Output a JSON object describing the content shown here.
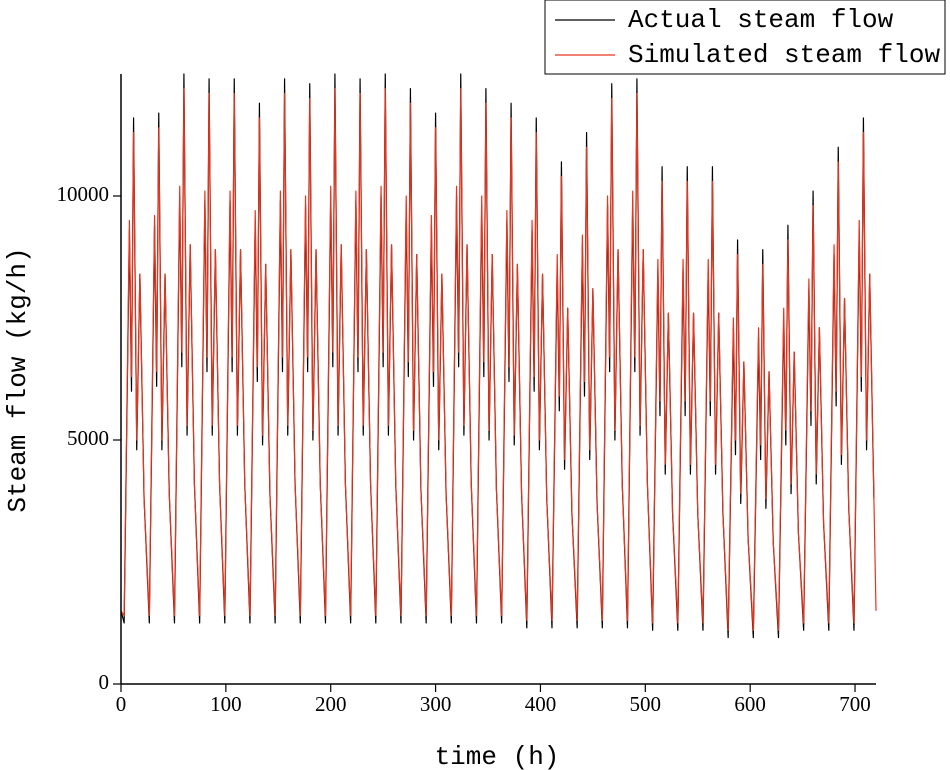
{
  "chart_data": {
    "type": "line",
    "x_label": "time (h)",
    "y_label": "Steam flow (kg/h)",
    "xlim": [
      0,
      720
    ],
    "xticks": [
      0,
      100,
      200,
      300,
      400,
      500,
      600,
      700
    ],
    "ylim": [
      0,
      12500
    ],
    "yticks": [
      0,
      5000,
      10000
    ],
    "x": [
      0,
      3,
      8,
      10,
      12,
      15,
      18,
      22,
      27,
      32,
      34,
      36,
      39,
      42,
      46,
      51,
      56,
      58,
      60,
      63,
      66,
      70,
      75,
      80,
      82,
      84,
      87,
      90,
      94,
      99,
      104,
      106,
      108,
      111,
      114,
      118,
      123,
      128,
      130,
      132,
      135,
      138,
      142,
      147,
      152,
      154,
      156,
      159,
      162,
      166,
      171,
      176,
      178,
      180,
      183,
      186,
      190,
      195,
      200,
      202,
      204,
      207,
      210,
      214,
      219,
      224,
      226,
      228,
      231,
      234,
      238,
      243,
      248,
      250,
      252,
      255,
      258,
      262,
      267,
      272,
      274,
      276,
      279,
      282,
      286,
      291,
      296,
      298,
      300,
      303,
      306,
      310,
      315,
      320,
      322,
      324,
      327,
      330,
      334,
      339,
      344,
      346,
      348,
      351,
      354,
      358,
      363,
      368,
      370,
      372,
      375,
      378,
      382,
      387,
      392,
      394,
      396,
      399,
      402,
      406,
      411,
      416,
      418,
      420,
      423,
      426,
      430,
      435,
      440,
      442,
      444,
      447,
      450,
      454,
      459,
      464,
      466,
      468,
      471,
      474,
      478,
      483,
      488,
      490,
      492,
      495,
      498,
      502,
      507,
      512,
      514,
      516,
      519,
      522,
      526,
      531,
      536,
      538,
      540,
      543,
      546,
      550,
      555,
      560,
      562,
      564,
      567,
      570,
      574,
      579,
      584,
      586,
      588,
      591,
      594,
      598,
      603,
      608,
      610,
      612,
      615,
      618,
      622,
      627,
      632,
      634,
      636,
      639,
      642,
      646,
      651,
      656,
      658,
      660,
      663,
      666,
      670,
      675,
      680,
      682,
      684,
      687,
      690,
      694,
      699,
      704,
      706,
      708,
      711,
      714,
      718,
      720
    ],
    "series": [
      {
        "name": "Actual steam flow",
        "color": "#000000",
        "values": [
          1500,
          1250,
          9300,
          6000,
          11600,
          4800,
          8400,
          3800,
          1250,
          9400,
          6100,
          11700,
          4800,
          8400,
          3900,
          1250,
          10000,
          6500,
          12500,
          5100,
          9000,
          4100,
          1250,
          9900,
          6400,
          12400,
          5100,
          8900,
          4100,
          1250,
          9900,
          6400,
          12400,
          5100,
          8900,
          4100,
          1250,
          9500,
          6200,
          11900,
          4900,
          8600,
          3900,
          1250,
          9900,
          6400,
          12400,
          5100,
          8900,
          4100,
          1250,
          9800,
          6400,
          12300,
          5000,
          8900,
          4100,
          1250,
          10000,
          6500,
          12500,
          5100,
          9000,
          4100,
          1250,
          9900,
          6400,
          12400,
          5100,
          8900,
          4100,
          1250,
          10000,
          6500,
          12500,
          5100,
          9000,
          4100,
          1250,
          9800,
          6300,
          12200,
          5000,
          8800,
          4000,
          1250,
          9400,
          6100,
          11700,
          4800,
          8400,
          3900,
          1250,
          10000,
          6500,
          12500,
          5100,
          9000,
          4100,
          1250,
          9800,
          6300,
          12200,
          5000,
          8800,
          4000,
          1250,
          9500,
          6200,
          11900,
          4900,
          8600,
          3900,
          1150,
          9300,
          6000,
          11600,
          4800,
          8400,
          3800,
          1150,
          8600,
          5600,
          10700,
          4400,
          7700,
          3500,
          1150,
          9000,
          5900,
          11300,
          4600,
          8100,
          3700,
          1150,
          9800,
          6400,
          12300,
          5000,
          8900,
          4100,
          1150,
          9900,
          6400,
          12400,
          5100,
          8900,
          4100,
          1100,
          8500,
          5500,
          10600,
          4300,
          7600,
          3500,
          1100,
          8500,
          5500,
          10600,
          4300,
          7600,
          3500,
          1100,
          8500,
          5500,
          10600,
          4300,
          7600,
          3500,
          950,
          7300,
          4700,
          9100,
          3700,
          6600,
          3000,
          950,
          7100,
          4600,
          8900,
          3600,
          6400,
          2900,
          950,
          7500,
          4900,
          9400,
          3900,
          6800,
          3100,
          1100,
          8100,
          5300,
          10100,
          4100,
          7300,
          3300,
          1100,
          8800,
          5700,
          11000,
          4500,
          7900,
          3600,
          1100,
          9300,
          6000,
          11600,
          4800,
          8400,
          3800,
          null
        ]
      },
      {
        "name": "Simulated steam flow",
        "color": "#e8341c",
        "values": [
          1500,
          1400,
          9500,
          6300,
          11300,
          5000,
          8400,
          3800,
          1400,
          9600,
          6400,
          11400,
          5000,
          8400,
          3900,
          1400,
          10200,
          6800,
          12200,
          5300,
          9000,
          4100,
          1400,
          10100,
          6700,
          12100,
          5300,
          8900,
          4100,
          1400,
          10100,
          6700,
          12100,
          5300,
          8900,
          4100,
          1400,
          9700,
          6500,
          11600,
          5100,
          8600,
          3900,
          1400,
          10100,
          6700,
          12100,
          5300,
          8900,
          4100,
          1400,
          10000,
          6700,
          12000,
          5200,
          8900,
          4100,
          1400,
          10200,
          6800,
          12200,
          5300,
          9000,
          4100,
          1400,
          10100,
          6700,
          12100,
          5300,
          8900,
          4100,
          1400,
          10200,
          6800,
          12200,
          5300,
          9000,
          4100,
          1400,
          10000,
          6600,
          11900,
          5200,
          8800,
          4000,
          1400,
          9600,
          6400,
          11400,
          5000,
          8400,
          3900,
          1400,
          10200,
          6800,
          12200,
          5300,
          9000,
          4100,
          1400,
          10000,
          6600,
          11900,
          5200,
          8800,
          4000,
          1400,
          9700,
          6500,
          11600,
          5100,
          8600,
          3900,
          1300,
          9500,
          6300,
          11300,
          5000,
          8400,
          3800,
          1300,
          8800,
          5900,
          10400,
          4600,
          7700,
          3500,
          1300,
          9200,
          6200,
          11000,
          4800,
          8100,
          3700,
          1300,
          10000,
          6700,
          12000,
          5200,
          8900,
          4100,
          1300,
          10100,
          6700,
          12100,
          5300,
          8900,
          4100,
          1250,
          8700,
          5800,
          10300,
          4500,
          7600,
          3500,
          1250,
          8700,
          5800,
          10300,
          4500,
          7600,
          3500,
          1250,
          8700,
          5800,
          10300,
          4500,
          7600,
          3500,
          1100,
          7500,
          5000,
          8800,
          3900,
          6600,
          3000,
          1100,
          7300,
          4900,
          8600,
          3800,
          6400,
          2900,
          1100,
          7700,
          5200,
          9100,
          4100,
          6800,
          3100,
          1250,
          8300,
          5600,
          9800,
          4300,
          7300,
          3300,
          1250,
          9000,
          6000,
          10700,
          4700,
          7900,
          3600,
          1250,
          9500,
          6300,
          11300,
          5000,
          8400,
          3800,
          1500
        ]
      }
    ],
    "legend": "upper-right"
  }
}
